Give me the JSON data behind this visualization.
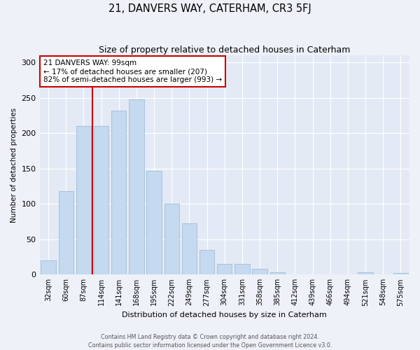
{
  "title": "21, DANVERS WAY, CATERHAM, CR3 5FJ",
  "subtitle": "Size of property relative to detached houses in Caterham",
  "xlabel": "Distribution of detached houses by size in Caterham",
  "ylabel": "Number of detached properties",
  "categories": [
    "32sqm",
    "60sqm",
    "87sqm",
    "114sqm",
    "141sqm",
    "168sqm",
    "195sqm",
    "222sqm",
    "249sqm",
    "277sqm",
    "304sqm",
    "331sqm",
    "358sqm",
    "385sqm",
    "412sqm",
    "439sqm",
    "466sqm",
    "494sqm",
    "521sqm",
    "548sqm",
    "575sqm"
  ],
  "values": [
    20,
    118,
    210,
    210,
    232,
    248,
    147,
    100,
    73,
    35,
    15,
    15,
    8,
    3,
    0,
    0,
    0,
    0,
    3,
    0,
    2
  ],
  "bar_color": "#c5d9f0",
  "bar_edge_color": "#a0bcd8",
  "marker_label_line1": "21 DANVERS WAY: 99sqm",
  "marker_label_line2": "← 17% of detached houses are smaller (207)",
  "marker_label_line3": "82% of semi-detached houses are larger (993) →",
  "marker_color": "#cc0000",
  "ylim": [
    0,
    310
  ],
  "yticks": [
    0,
    50,
    100,
    150,
    200,
    250,
    300
  ],
  "footer_line1": "Contains HM Land Registry data © Crown copyright and database right 2024.",
  "footer_line2": "Contains public sector information licensed under the Open Government Licence v3.0.",
  "bg_color": "#eef2f8",
  "plot_bg_color": "#e4eaf5"
}
